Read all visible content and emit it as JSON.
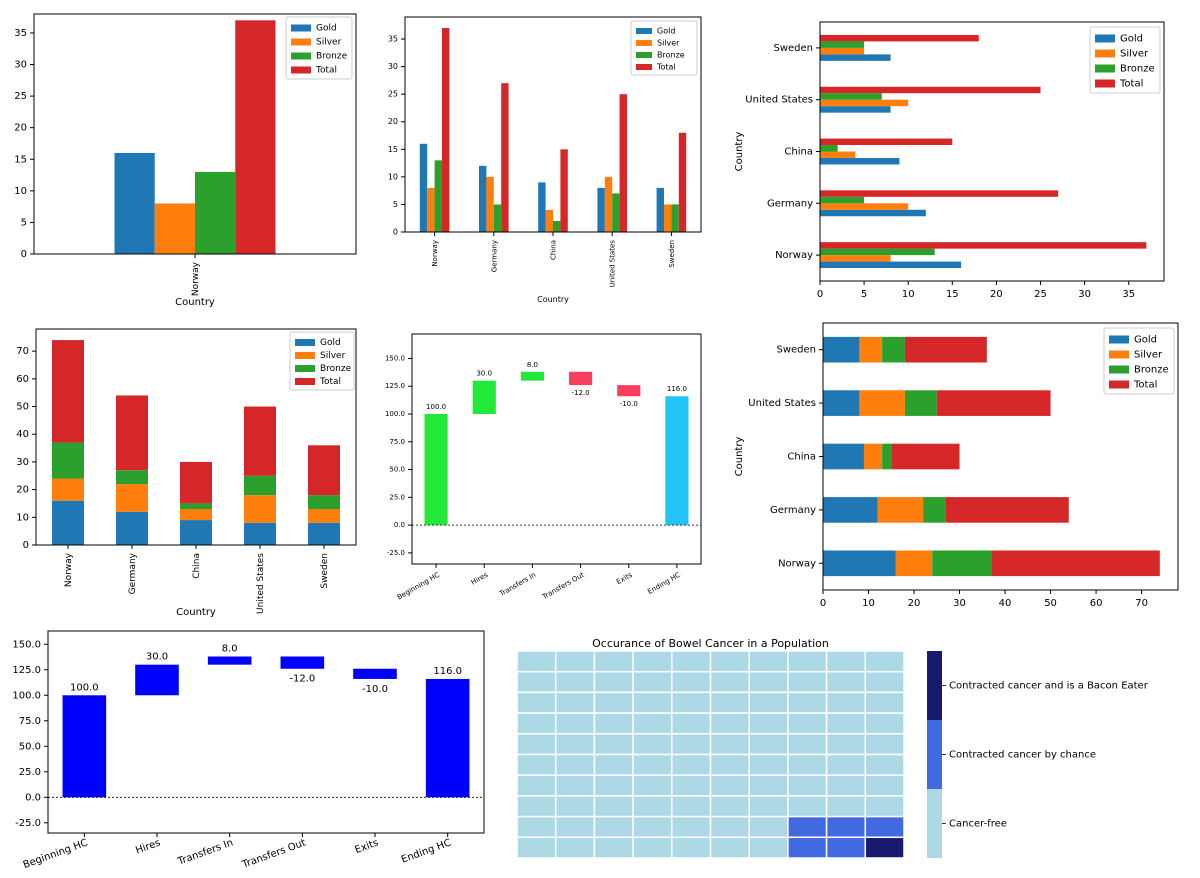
{
  "colors": {
    "gold": "#1f77b4",
    "silver": "#ff7f0e",
    "bronze": "#2ca02c",
    "total": "#d62728",
    "wf_up": "#22e83a",
    "wf_down": "#fa3e5e",
    "wf_end": "#22c4f7",
    "wf_blue": "#0000ff",
    "label_up": "#119911",
    "label_down": "#e0202a",
    "cancer_free": "#add8e6",
    "cancer_chance": "#4169e1",
    "cancer_bacon": "#191970"
  },
  "medal_legend": [
    "Gold",
    "Silver",
    "Bronze",
    "Total"
  ],
  "chart_data": [
    {
      "type": "bar",
      "xlabel": "Country",
      "categories": [
        "Norway"
      ],
      "series": [
        {
          "name": "Gold",
          "values": [
            16
          ]
        },
        {
          "name": "Silver",
          "values": [
            8
          ]
        },
        {
          "name": "Bronze",
          "values": [
            13
          ]
        },
        {
          "name": "Total",
          "values": [
            37
          ]
        }
      ],
      "ylim": [
        0,
        38
      ],
      "yticks": [
        0,
        5,
        10,
        15,
        20,
        25,
        30,
        35
      ],
      "legend": "top-right"
    },
    {
      "type": "bar",
      "xlabel": "Country",
      "categories": [
        "Norway",
        "Germany",
        "China",
        "United States",
        "Sweden"
      ],
      "series": [
        {
          "name": "Gold",
          "values": [
            16,
            12,
            9,
            8,
            8
          ]
        },
        {
          "name": "Silver",
          "values": [
            8,
            10,
            4,
            10,
            5
          ]
        },
        {
          "name": "Bronze",
          "values": [
            13,
            5,
            2,
            7,
            5
          ]
        },
        {
          "name": "Total",
          "values": [
            37,
            27,
            15,
            25,
            18
          ]
        }
      ],
      "ylim": [
        0,
        39
      ],
      "yticks": [
        0,
        5,
        10,
        15,
        20,
        25,
        30,
        35
      ],
      "legend": "top-right"
    },
    {
      "type": "bar",
      "orientation": "horizontal",
      "ylabel": "Country",
      "categories": [
        "Norway",
        "Germany",
        "China",
        "United States",
        "Sweden"
      ],
      "series": [
        {
          "name": "Gold",
          "values": [
            16,
            12,
            9,
            8,
            8
          ]
        },
        {
          "name": "Silver",
          "values": [
            8,
            10,
            4,
            10,
            5
          ]
        },
        {
          "name": "Bronze",
          "values": [
            13,
            5,
            2,
            7,
            5
          ]
        },
        {
          "name": "Total",
          "values": [
            37,
            27,
            15,
            25,
            18
          ]
        }
      ],
      "xlim": [
        0,
        39
      ],
      "xticks": [
        0,
        5,
        10,
        15,
        20,
        25,
        30,
        35
      ],
      "legend": "top-right"
    },
    {
      "type": "bar",
      "stacked": true,
      "xlabel": "Country",
      "categories": [
        "Norway",
        "Germany",
        "China",
        "United States",
        "Sweden"
      ],
      "series": [
        {
          "name": "Gold",
          "values": [
            16,
            12,
            9,
            8,
            8
          ]
        },
        {
          "name": "Silver",
          "values": [
            8,
            10,
            4,
            10,
            5
          ]
        },
        {
          "name": "Bronze",
          "values": [
            13,
            5,
            2,
            7,
            5
          ]
        },
        {
          "name": "Total",
          "values": [
            37,
            27,
            15,
            25,
            18
          ]
        }
      ],
      "ylim": [
        0,
        78
      ],
      "yticks": [
        0,
        10,
        20,
        30,
        40,
        50,
        60,
        70
      ],
      "legend": "top-right"
    },
    {
      "type": "bar",
      "subtype": "waterfall",
      "categories": [
        "Beginning HC",
        "Hires",
        "Transfers In",
        "Transfers Out",
        "Exits",
        "Ending HC"
      ],
      "values": [
        100.0,
        30.0,
        8.0,
        -12.0,
        -10.0,
        116.0
      ],
      "labels": [
        "100.0",
        "30.0",
        "8.0",
        "-12.0",
        "-10.0",
        "116.0"
      ],
      "ylim": [
        -35,
        172
      ],
      "yticks": [
        -25.0,
        0.0,
        25.0,
        50.0,
        75.0,
        100.0,
        125.0,
        150.0
      ],
      "yticklabels": [
        "-25.0",
        "0.0",
        "25.0",
        "50.0",
        "75.0",
        "100.0",
        "125.0",
        "150.0"
      ]
    },
    {
      "type": "bar",
      "stacked": true,
      "orientation": "horizontal",
      "ylabel": "Country",
      "categories": [
        "Norway",
        "Germany",
        "China",
        "United States",
        "Sweden"
      ],
      "series": [
        {
          "name": "Gold",
          "values": [
            16,
            12,
            9,
            8,
            8
          ]
        },
        {
          "name": "Silver",
          "values": [
            8,
            10,
            4,
            10,
            5
          ]
        },
        {
          "name": "Bronze",
          "values": [
            13,
            5,
            2,
            7,
            5
          ]
        },
        {
          "name": "Total",
          "values": [
            37,
            27,
            15,
            25,
            18
          ]
        }
      ],
      "xlim": [
        0,
        78
      ],
      "xticks": [
        0,
        10,
        20,
        30,
        40,
        50,
        60,
        70
      ],
      "legend": "top-right"
    },
    {
      "type": "bar",
      "subtype": "waterfall",
      "categories": [
        "Beginning HC",
        "Hires",
        "Transfers In",
        "Transfers Out",
        "Exits",
        "Ending HC"
      ],
      "values": [
        100.0,
        30.0,
        8.0,
        -12.0,
        -10.0,
        116.0
      ],
      "labels": [
        "100.0",
        "30.0",
        "8.0",
        "-12.0",
        "-10.0",
        "116.0"
      ],
      "ylim": [
        -35,
        163
      ],
      "yticks": [
        -25.0,
        0.0,
        25.0,
        50.0,
        75.0,
        100.0,
        125.0,
        150.0
      ],
      "yticklabels": [
        "-25.0",
        "0.0",
        "25.0",
        "50.0",
        "75.0",
        "100.0",
        "125.0",
        "150.0"
      ]
    },
    {
      "type": "heatmap",
      "title": "Occurance of Bowel Cancer in a Population",
      "rows": 10,
      "cols": 10,
      "cells": {
        "cancer_chance": [
          [
            8,
            7
          ],
          [
            8,
            8
          ],
          [
            8,
            9
          ],
          [
            9,
            7
          ],
          [
            9,
            8
          ]
        ],
        "cancer_bacon": [
          [
            9,
            9
          ]
        ]
      },
      "legend": [
        "Contracted cancer and is a Bacon Eater",
        "Contracted cancer by chance",
        "Cancer-free"
      ]
    }
  ]
}
